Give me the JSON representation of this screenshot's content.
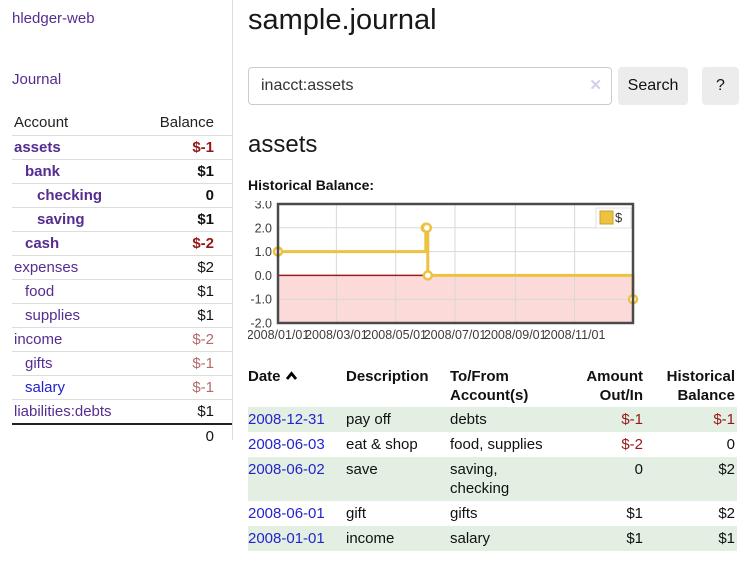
{
  "app": {
    "brand": "hledger-web"
  },
  "sidebar": {
    "journal_label": "Journal",
    "accounts_table": {
      "col_account": "Account",
      "col_balance": "Balance",
      "rows": [
        {
          "name": "assets",
          "indent": 0,
          "bold": true,
          "balance": "$-1",
          "balance_class": "neg-strong"
        },
        {
          "name": "bank",
          "indent": 1,
          "bold": true,
          "balance": "$1",
          "balance_class": "pos"
        },
        {
          "name": "checking",
          "indent": 2,
          "bold": true,
          "balance": "0",
          "balance_class": "pos"
        },
        {
          "name": "saving",
          "indent": 2,
          "bold": true,
          "balance": "$1",
          "balance_class": "pos"
        },
        {
          "name": "cash",
          "indent": 1,
          "bold": true,
          "balance": "$-2",
          "balance_class": "neg-strong"
        },
        {
          "name": "expenses",
          "indent": 0,
          "bold": false,
          "balance": "$2",
          "balance_class": "pos"
        },
        {
          "name": "food",
          "indent": 1,
          "bold": false,
          "balance": "$1",
          "balance_class": "pos"
        },
        {
          "name": "supplies",
          "indent": 1,
          "bold": false,
          "balance": "$1",
          "balance_class": "pos"
        },
        {
          "name": "income",
          "indent": 0,
          "bold": false,
          "balance": "$-2",
          "balance_class": "neg-muted"
        },
        {
          "name": "gifts",
          "indent": 1,
          "bold": false,
          "balance": "$-1",
          "balance_class": "neg-muted"
        },
        {
          "name": "salary",
          "indent": 1,
          "bold": false,
          "balance": "$-1",
          "balance_class": "neg-muted",
          "link_style": "unvisited"
        },
        {
          "name": "liabilities:debts",
          "indent": 0,
          "bold": false,
          "balance": "$1",
          "balance_class": "pos"
        }
      ],
      "total": "0"
    }
  },
  "header": {
    "title": "sample.journal"
  },
  "search": {
    "value": "inacct:assets",
    "clear_icon": "✕",
    "button_label": "Search",
    "help_label": "?"
  },
  "account_page": {
    "heading": "assets",
    "chart_label": "Historical Balance:"
  },
  "chart_data": {
    "type": "line",
    "step": true,
    "title": "Historical Balance:",
    "series": [
      {
        "name": "$",
        "color": "#edc240",
        "points": [
          {
            "date": "2008-01-01",
            "value": 1
          },
          {
            "date": "2008-06-01",
            "value": 2
          },
          {
            "date": "2008-06-02",
            "value": 2
          },
          {
            "date": "2008-06-03",
            "value": 0
          },
          {
            "date": "2008-12-31",
            "value": -1
          }
        ]
      }
    ],
    "x_range": [
      "2008-01-01",
      "2008-12-31"
    ],
    "ylim": [
      -2,
      3
    ],
    "y_ticks": [
      "3.0",
      "2.0",
      "1.0",
      "0.0",
      "-1.0",
      "-2.0"
    ],
    "x_ticks": [
      "2008/01/01",
      "2008/03/01",
      "2008/05/01",
      "2008/07/01",
      "2008/09/01",
      "2008/11/01"
    ],
    "grid": true,
    "legend": "$",
    "legend_position": "top-right",
    "negative_fill": "#fcdada",
    "zero_line_color": "#9b1c1c",
    "grid_color": "#d8d8d8",
    "border_color": "#4a4a4a",
    "marker": "circle-open"
  },
  "register": {
    "columns": {
      "date": "Date",
      "description": "Description",
      "accounts": "To/From Account(s)",
      "amount": "Amount Out/In",
      "balance": "Historical Balance"
    },
    "rows": [
      {
        "date": "2008-12-31",
        "description": "pay off",
        "accounts": "debts",
        "amount": "$-1",
        "amount_neg": true,
        "balance": "$-1",
        "balance_neg": true
      },
      {
        "date": "2008-06-03",
        "description": "eat & shop",
        "accounts": "food, supplies",
        "amount": "$-2",
        "amount_neg": true,
        "balance": "0",
        "balance_neg": false
      },
      {
        "date": "2008-06-02",
        "description": "save",
        "accounts": "saving, checking",
        "amount": "0",
        "amount_neg": false,
        "balance": "$2",
        "balance_neg": false
      },
      {
        "date": "2008-06-01",
        "description": "gift",
        "accounts": "gifts",
        "amount": "$1",
        "amount_neg": false,
        "balance": "$2",
        "balance_neg": false
      },
      {
        "date": "2008-01-01",
        "description": "income",
        "accounts": "salary",
        "amount": "$1",
        "amount_neg": false,
        "balance": "$1",
        "balance_neg": false
      }
    ]
  },
  "colors": {
    "link_purple": "#552d90",
    "link_blue": "#2222cc",
    "negative_strong": "#971717",
    "negative_muted": "#b36a6a",
    "row_stripe_green": "#e2efe2",
    "series_gold": "#edc240",
    "negative_region_pink": "#fcdada",
    "zero_line_red": "#9b1c1c"
  }
}
